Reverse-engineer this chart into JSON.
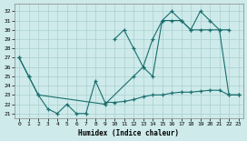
{
  "xlabel": "Humidex (Indice chaleur)",
  "background_color": "#ceeaea",
  "grid_color": "#aacfcf",
  "line_color": "#1a6e6e",
  "xlim": [
    -0.5,
    23.5
  ],
  "ylim": [
    20.5,
    32.8
  ],
  "yticks": [
    21,
    22,
    23,
    24,
    25,
    26,
    27,
    28,
    29,
    30,
    31,
    32
  ],
  "xticks": [
    0,
    1,
    2,
    3,
    4,
    5,
    6,
    7,
    8,
    9,
    10,
    11,
    12,
    13,
    14,
    15,
    16,
    17,
    18,
    19,
    20,
    21,
    22,
    23
  ],
  "line1_x": [
    0,
    1,
    2,
    3,
    4,
    5,
    6,
    7,
    8,
    9,
    10,
    11,
    12,
    13,
    14,
    15,
    16,
    17,
    18,
    19,
    20,
    21,
    22,
    23
  ],
  "line1_y": [
    27,
    25,
    23,
    21.5,
    21,
    22,
    21,
    21,
    24.5,
    22.2,
    22.2,
    22.3,
    22.5,
    22.8,
    23,
    23,
    23.2,
    23.3,
    23.3,
    23.4,
    23.5,
    23.5,
    23,
    23
  ],
  "line2_x": [
    0,
    1,
    2,
    9,
    12,
    13,
    14,
    15,
    16,
    17,
    18,
    19,
    20,
    21,
    22,
    23
  ],
  "line2_y": [
    27,
    25,
    23,
    22,
    25,
    26,
    25,
    31,
    31,
    31,
    30,
    30,
    30,
    30,
    23,
    23
  ],
  "line3_x": [
    10,
    11,
    12,
    13,
    14,
    15,
    16,
    17,
    18,
    19,
    20,
    21,
    22
  ],
  "line3_y": [
    29,
    30,
    28,
    26,
    29,
    31,
    32,
    31,
    30,
    32,
    31,
    30,
    30
  ]
}
